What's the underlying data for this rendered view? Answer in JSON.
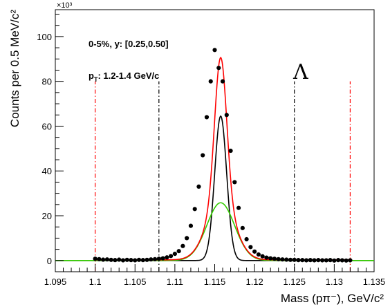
{
  "chart_data": {
    "type": "scatter",
    "title": "",
    "xlabel": "Mass (pπ⁻), GeV/c²",
    "ylabel": "Counts per 0.5 MeV/c²",
    "y_multiplier": "×10³",
    "xlim": [
      1.095,
      1.135
    ],
    "ylim": [
      -5,
      112
    ],
    "x_ticks": [
      1.095,
      1.1,
      1.105,
      1.11,
      1.115,
      1.12,
      1.125,
      1.13,
      1.135
    ],
    "x_tick_labels": [
      "1.095",
      "1.1",
      "1.105",
      "1.11",
      "1.115",
      "1.12",
      "1.125",
      "1.13",
      "1.135"
    ],
    "y_ticks": [
      0,
      20,
      40,
      60,
      80,
      100
    ],
    "y_tick_labels": [
      "0",
      "20",
      "40",
      "60",
      "80",
      "100"
    ],
    "grid": false,
    "annotations": {
      "centrality": "0-5%, y: [0.25,0.50]",
      "pt_prefix": "p",
      "pt_sub": "T",
      "pt_rest": ": 1.2-1.4 GeV/c",
      "particle": "Λ"
    },
    "colors": {
      "data": "#000000",
      "total_fit": "#ff0000",
      "narrow_gauss": "#000000",
      "wide_gauss": "#33cc00",
      "sideband_lines": "#000000",
      "outer_lines": "#ff0000"
    },
    "vertical_lines": [
      {
        "x": 1.1,
        "color": "#ff0000"
      },
      {
        "x": 1.108,
        "color": "#000000"
      },
      {
        "x": 1.125,
        "color": "#000000"
      },
      {
        "x": 1.132,
        "color": "#ff0000"
      }
    ],
    "fit": {
      "mean": 1.11575,
      "narrow": {
        "amplitude": 64.5,
        "sigma": 0.00075
      },
      "wide": {
        "amplitude": 25.8,
        "sigma": 0.00175
      },
      "baseline": 0.3
    },
    "series": [
      {
        "name": "Data",
        "x": [
          1.1,
          1.1005,
          1.101,
          1.1015,
          1.102,
          1.1025,
          1.103,
          1.1035,
          1.104,
          1.1045,
          1.105,
          1.1055,
          1.106,
          1.1065,
          1.107,
          1.1075,
          1.108,
          1.1085,
          1.109,
          1.1095,
          1.11,
          1.1105,
          1.111,
          1.1115,
          1.112,
          1.1125,
          1.113,
          1.1135,
          1.114,
          1.1145,
          1.115,
          1.1155,
          1.116,
          1.1165,
          1.117,
          1.1175,
          1.118,
          1.1185,
          1.119,
          1.1195,
          1.12,
          1.1205,
          1.121,
          1.1215,
          1.122,
          1.1225,
          1.123,
          1.1235,
          1.124,
          1.1245,
          1.125,
          1.1255,
          1.126,
          1.1265,
          1.127,
          1.1275,
          1.128,
          1.1285,
          1.129,
          1.1295,
          1.13,
          1.1305,
          1.131,
          1.1315,
          1.132
        ],
        "y": [
          0.8,
          0.6,
          0.4,
          0.5,
          0.3,
          0.2,
          0.4,
          0.1,
          0.3,
          0.2,
          0.1,
          0.3,
          0.2,
          0.3,
          0.5,
          0.6,
          0.8,
          1.0,
          1.4,
          2.0,
          3.0,
          4.2,
          6.5,
          10.0,
          15.5,
          23.0,
          33.0,
          47.0,
          64.0,
          80.0,
          94.0,
          86.0,
          80.0,
          65.0,
          49.0,
          35.0,
          23.5,
          14.5,
          9.5,
          6.0,
          4.0,
          2.7,
          1.9,
          1.3,
          1.0,
          0.8,
          0.6,
          0.5,
          0.4,
          0.3,
          0.3,
          0.2,
          0.2,
          0.1,
          0.2,
          0.1,
          0.2,
          0.1,
          0.1,
          0.2,
          0.0,
          0.2,
          0.1,
          0.0,
          0.1
        ]
      }
    ]
  }
}
